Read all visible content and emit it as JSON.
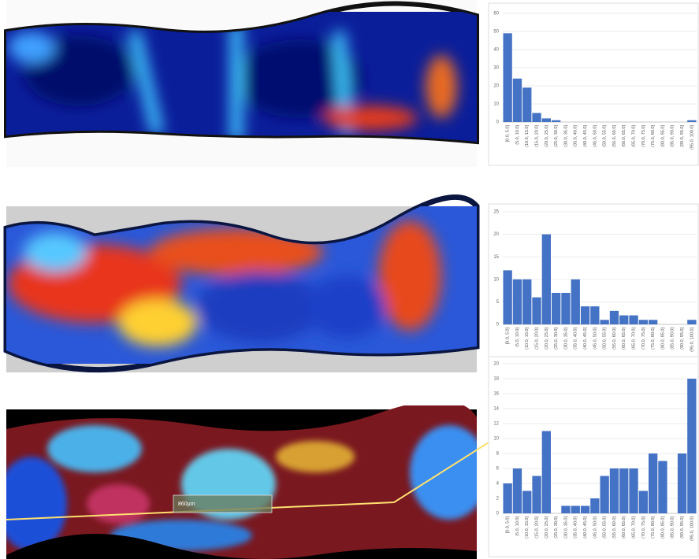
{
  "chart_data": [
    {
      "type": "bar",
      "color": "#4472c4",
      "grid": true,
      "categories": [
        "[0.0, 5.0]",
        "(5.0, 10.0]",
        "(10.0, 15.0]",
        "(15.0, 20.0]",
        "(20.0, 25.0]",
        "(25.0, 30.0]",
        "(30.0, 35.0]",
        "(35.0, 40.0]",
        "(40.0, 45.0]",
        "(45.0, 50.0]",
        "(50.0, 55.0]",
        "(55.0, 60.0]",
        "(60.0, 65.0]",
        "(65.0, 70.0]",
        "(70.0, 75.0]",
        "(75.0, 80.0]",
        "(80.0, 85.0]",
        "(85.0, 90.0]",
        "(90.0, 95.0]",
        "(95.0, 100.0]"
      ],
      "values": [
        49,
        24,
        19,
        5,
        2,
        1,
        0,
        0,
        0,
        0,
        0,
        0,
        0,
        0,
        0,
        0,
        0,
        0,
        0,
        1
      ],
      "ylim": [
        0,
        60
      ],
      "yticks": [
        0,
        10,
        20,
        30,
        40,
        50,
        60
      ]
    },
    {
      "type": "bar",
      "color": "#4472c4",
      "grid": true,
      "categories": [
        "[0.0, 5.0]",
        "(5.0, 10.0]",
        "(10.0, 15.0]",
        "(15.0, 20.0]",
        "(20.0, 25.0]",
        "(25.0, 30.0]",
        "(30.0, 35.0]",
        "(35.0, 40.0]",
        "(40.0, 45.0]",
        "(45.0, 50.0]",
        "(50.0, 55.0]",
        "(55.0, 60.0]",
        "(60.0, 65.0]",
        "(65.0, 70.0]",
        "(70.0, 75.0]",
        "(75.0, 80.0]",
        "(80.0, 85.0]",
        "(85.0, 90.0]",
        "(90.0, 95.0]",
        "(95.0, 100.0]"
      ],
      "values": [
        12,
        10,
        10,
        6,
        20,
        7,
        7,
        10,
        4,
        4,
        1,
        3,
        2,
        2,
        1,
        1,
        0,
        0,
        0,
        1
      ],
      "ylim": [
        0,
        25
      ],
      "yticks": [
        0,
        5,
        10,
        15,
        20,
        25
      ]
    },
    {
      "type": "bar",
      "color": "#4472c4",
      "grid": true,
      "categories": [
        "[0.0, 5.0]",
        "(5.0, 10.0]",
        "(10.0, 15.0]",
        "(15.0, 20.0]",
        "(20.0, 25.0]",
        "(25.0, 30.0]",
        "(30.0, 35.0]",
        "(35.0, 40.0]",
        "(40.0, 45.0]",
        "(45.0, 50.0]",
        "(50.0, 55.0]",
        "(55.0, 60.0]",
        "(60.0, 65.0]",
        "(65.0, 70.0]",
        "(70.0, 75.0]",
        "(75.0, 80.0]",
        "(80.0, 85.0]",
        "(85.0, 90.0]",
        "(90.0, 95.0]",
        "(95.0, 100.0]"
      ],
      "values": [
        4,
        6,
        3,
        5,
        11,
        0,
        1,
        1,
        1,
        2,
        5,
        6,
        6,
        6,
        3,
        8,
        7,
        0,
        8,
        18
      ],
      "ylim": [
        0,
        20
      ],
      "yticks": [
        0,
        2,
        4,
        6,
        8,
        10,
        12,
        14,
        16,
        18,
        20
      ]
    }
  ],
  "scale_bar_label": "860µm"
}
